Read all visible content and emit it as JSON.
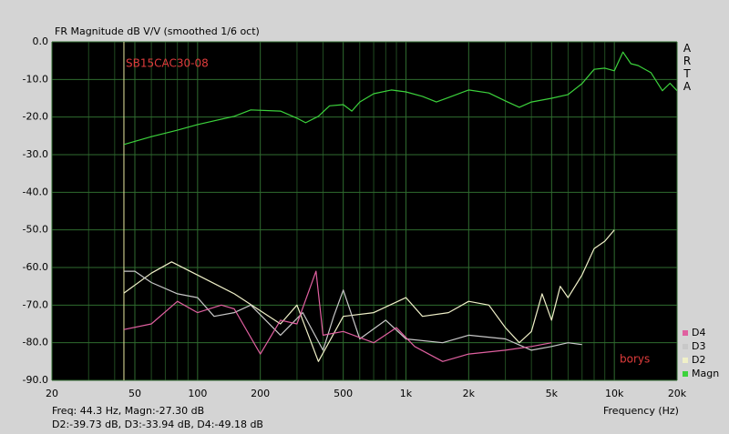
{
  "chart_data": {
    "type": "line",
    "title": "FR Magnitude dB V/V (smoothed 1/6 oct)",
    "side_label": "ARTA",
    "x_label": "Frequency (Hz)",
    "annotations": [
      "SB15CAC30-08",
      "borys"
    ],
    "annotation_color": "#e03c3c",
    "footer": [
      "Freq: 44.3 Hz, Magn:-27.30 dB",
      "D2:-39.73 dB, D3:-33.94 dB, D4:-49.18 dB"
    ],
    "cursor_x": 44.3,
    "cursor_color": "#e8e8a0",
    "log_x": true,
    "grid": true,
    "grid_color": "#2f6b2f",
    "plot_background": "#000000",
    "legend": "lower right",
    "xlim": [
      20,
      20000
    ],
    "xticks": [
      20,
      50,
      100,
      200,
      500,
      {
        "value": 1000,
        "label": "1k"
      },
      {
        "value": 2000,
        "label": "2k"
      },
      {
        "value": 5000,
        "label": "5k"
      },
      {
        "value": 10000,
        "label": "10k"
      },
      {
        "value": 20000,
        "label": "20k"
      }
    ],
    "xminorticks": [
      30,
      40,
      60,
      70,
      80,
      90,
      300,
      400,
      600,
      700,
      800,
      900,
      3000,
      4000,
      6000,
      7000,
      8000,
      9000
    ],
    "ylim": [
      -90,
      0
    ],
    "yticks": [
      {
        "value": 0,
        "label": "0.0"
      },
      {
        "value": -10,
        "label": "-10.0"
      },
      {
        "value": -20,
        "label": "-20.0"
      },
      {
        "value": -30,
        "label": "-30.0"
      },
      {
        "value": -40,
        "label": "-40.0"
      },
      {
        "value": -50,
        "label": "-50.0"
      },
      {
        "value": -60,
        "label": "-60.0"
      },
      {
        "value": -70,
        "label": "-70.0"
      },
      {
        "value": -80,
        "label": "-80.0"
      },
      {
        "value": -90,
        "label": "-90.0"
      }
    ],
    "series": [
      {
        "name": "Magn",
        "color": "#3cd23c",
        "x": [
          44.3,
          60,
          80,
          100,
          150,
          180,
          250,
          300,
          330,
          380,
          430,
          500,
          550,
          600,
          700,
          850,
          1000,
          1200,
          1400,
          1600,
          2000,
          2500,
          3000,
          3500,
          4000,
          5000,
          6000,
          7000,
          8000,
          9000,
          10000,
          11000,
          12000,
          13000,
          15000,
          17000,
          18500,
          20000
        ],
        "values": [
          -27.3,
          -25.2,
          -23.5,
          -22,
          -19.8,
          -18.1,
          -18.4,
          -20.3,
          -21.5,
          -19.8,
          -17,
          -16.7,
          -18.4,
          -16,
          -13.8,
          -12.8,
          -13.3,
          -14.5,
          -16,
          -14.8,
          -12.8,
          -13.6,
          -15.7,
          -17.4,
          -16,
          -15,
          -14,
          -11.1,
          -7.3,
          -7,
          -7.7,
          -2.7,
          -5.8,
          -6.3,
          -8.2,
          -13,
          -11,
          -13
        ]
      },
      {
        "name": "D2",
        "color": "#f0f0c8",
        "x": [
          44.3,
          60,
          75,
          100,
          150,
          250,
          300,
          380,
          500,
          700,
          1000,
          1200,
          1600,
          2000,
          2500,
          3000,
          3500,
          4000,
          4500,
          5000,
          5500,
          6000,
          7000,
          8000,
          9000,
          10000
        ],
        "values": [
          -66.8,
          -61.5,
          -58.5,
          -62,
          -67,
          -75,
          -70,
          -85,
          -73,
          -72,
          -68,
          -73,
          -72,
          -69,
          -70,
          -76,
          -80,
          -77,
          -67,
          -74,
          -65,
          -68,
          -62,
          -55,
          -53,
          -50
        ]
      },
      {
        "name": "D3",
        "color": "#c8c8c8",
        "x": [
          44.3,
          50,
          60,
          80,
          100,
          120,
          150,
          180,
          250,
          320,
          400,
          450,
          500,
          600,
          800,
          1000,
          1500,
          2000,
          3000,
          4000,
          5000,
          6000,
          7000
        ],
        "values": [
          -61,
          -61,
          -64,
          -67,
          -68,
          -73,
          -72,
          -70,
          -78,
          -72,
          -82,
          -73,
          -66,
          -79,
          -74,
          -79,
          -80,
          -78,
          -79,
          -82,
          -81,
          -80,
          -80.5
        ]
      },
      {
        "name": "D4",
        "color": "#e060a0",
        "x": [
          44.3,
          60,
          80,
          100,
          130,
          150,
          200,
          250,
          300,
          370,
          400,
          500,
          700,
          900,
          1100,
          1500,
          2000,
          3000,
          4000,
          5000
        ],
        "values": [
          -76.5,
          -75,
          -69,
          -72,
          -70,
          -71,
          -83,
          -74,
          -75,
          -61,
          -78,
          -77,
          -80,
          -76,
          -81,
          -85,
          -83,
          -82,
          -81,
          -80
        ]
      }
    ]
  }
}
